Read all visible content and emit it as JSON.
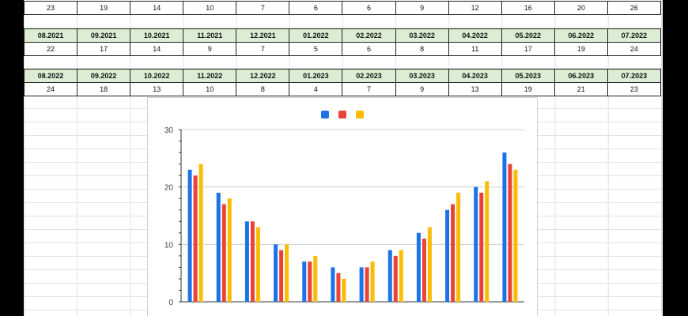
{
  "table_top": {
    "values": [
      "23",
      "19",
      "14",
      "10",
      "7",
      "6",
      "6",
      "9",
      "12",
      "16",
      "20",
      "26"
    ]
  },
  "table_mid": {
    "headers": [
      "08.2021",
      "09.2021",
      "10.2021",
      "11.2021",
      "12.2021",
      "01.2022",
      "02.2022",
      "03.2022",
      "04.2022",
      "05.2022",
      "06.2022",
      "07.2022"
    ],
    "values": [
      "22",
      "17",
      "14",
      "9",
      "7",
      "5",
      "6",
      "8",
      "11",
      "17",
      "19",
      "24"
    ]
  },
  "table_bottom": {
    "headers": [
      "08.2022",
      "09.2022",
      "10.2022",
      "11.2022",
      "12.2022",
      "01.2023",
      "02.2023",
      "03.2023",
      "04.2023",
      "05.2023",
      "06.2023",
      "07.2023"
    ],
    "values": [
      "24",
      "18",
      "13",
      "10",
      "8",
      "4",
      "7",
      "9",
      "13",
      "19",
      "21",
      "23"
    ]
  },
  "chart_data": {
    "type": "bar",
    "ylim": [
      0,
      30
    ],
    "yticks": [
      "0",
      "10",
      "20",
      "30"
    ],
    "grid": true,
    "legend": "top",
    "series": [
      {
        "color": "#1a73e8",
        "values": [
          23,
          19,
          14,
          10,
          7,
          6,
          6,
          9,
          12,
          16,
          20,
          26
        ]
      },
      {
        "color": "#ea4335",
        "values": [
          22,
          17,
          14,
          9,
          7,
          5,
          6,
          8,
          11,
          17,
          19,
          24
        ]
      },
      {
        "color": "#fbbc04",
        "values": [
          24,
          18,
          13,
          10,
          8,
          4,
          7,
          9,
          13,
          19,
          21,
          23
        ]
      }
    ]
  }
}
